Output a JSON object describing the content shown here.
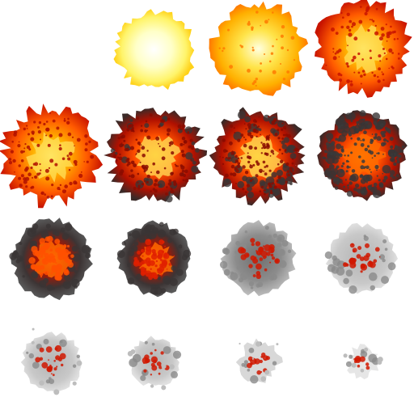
{
  "sheet": {
    "columns": 4,
    "rows": 4,
    "frames": [
      {
        "index": 0,
        "visible": false
      },
      {
        "index": 1,
        "visible": true,
        "phase": "flash"
      },
      {
        "index": 2,
        "visible": true,
        "phase": "flash"
      },
      {
        "index": 3,
        "visible": true,
        "phase": "fireball"
      },
      {
        "index": 4,
        "visible": true,
        "phase": "fireball"
      },
      {
        "index": 5,
        "visible": true,
        "phase": "fireball"
      },
      {
        "index": 6,
        "visible": true,
        "phase": "fireball"
      },
      {
        "index": 7,
        "visible": true,
        "phase": "smoke-fire"
      },
      {
        "index": 8,
        "visible": true,
        "phase": "smoke-fire"
      },
      {
        "index": 9,
        "visible": true,
        "phase": "smoke-fire"
      },
      {
        "index": 10,
        "visible": true,
        "phase": "smoke"
      },
      {
        "index": 11,
        "visible": true,
        "phase": "smoke"
      },
      {
        "index": 12,
        "visible": true,
        "phase": "embers"
      },
      {
        "index": 13,
        "visible": true,
        "phase": "embers"
      },
      {
        "index": 14,
        "visible": true,
        "phase": "embers"
      },
      {
        "index": 15,
        "visible": true,
        "phase": "embers"
      }
    ]
  },
  "colors": {
    "background": "#ffffff",
    "flash_core": "#ffffe0",
    "flash_mid": "#fff070",
    "yellow": "#ffd21a",
    "orange": "#ff8a00",
    "red": "#e02000",
    "dark_red": "#8a0c00",
    "char": "#3a3a3a",
    "smoke_dark": "#6e6e6e",
    "smoke_light": "#c8c8c8"
  }
}
